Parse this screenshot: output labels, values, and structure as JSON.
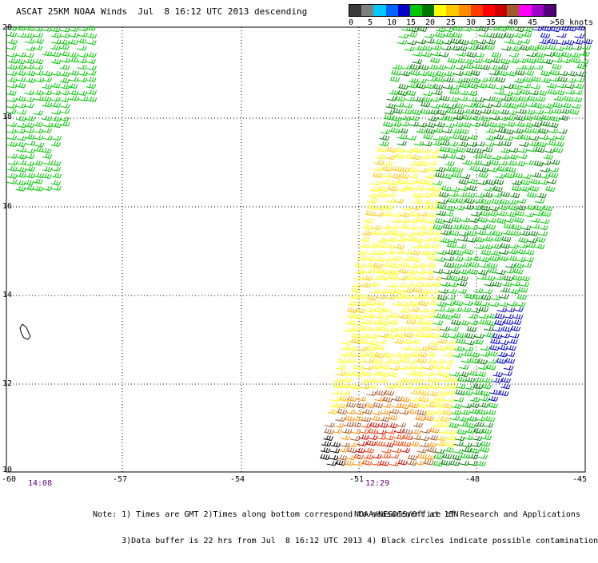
{
  "title": "ASCAT 25KM NOAA Winds  Jul  8 16:12 UTC 2013 descending",
  "legend": {
    "colors": [
      "#3a3a3a",
      "#808080",
      "#00c8ff",
      "#0064ff",
      "#0000c8",
      "#00c800",
      "#007800",
      "#ffff00",
      "#ffc800",
      "#ff8c00",
      "#ff3c00",
      "#ff0000",
      "#c80000",
      "#a05a2a",
      "#ff00ff",
      "#a000c8",
      "#500078"
    ],
    "labels": [
      "0",
      "5",
      "10",
      "15",
      "20",
      "25",
      "30",
      "35",
      "40",
      "45",
      ">50 knots"
    ]
  },
  "map": {
    "lat_labels": [
      "20",
      "18",
      "16",
      "14",
      "12",
      "10"
    ],
    "lon_labels": [
      "-60",
      "-57",
      "-54",
      "-51",
      "-48",
      "-45"
    ],
    "times": [
      "14:08",
      "12:29"
    ]
  },
  "notes": [
    "Note: 1) Times are GMT 2)Times along bottom correspond to measurement at 15N",
    "      3)Data buffer is 22 hrs from Jul  8 16:12 UTC 2013 4) Black circles indicate possible contamination"
  ],
  "credit": "NOAA/NESDIS/Office of Research and Applications"
}
